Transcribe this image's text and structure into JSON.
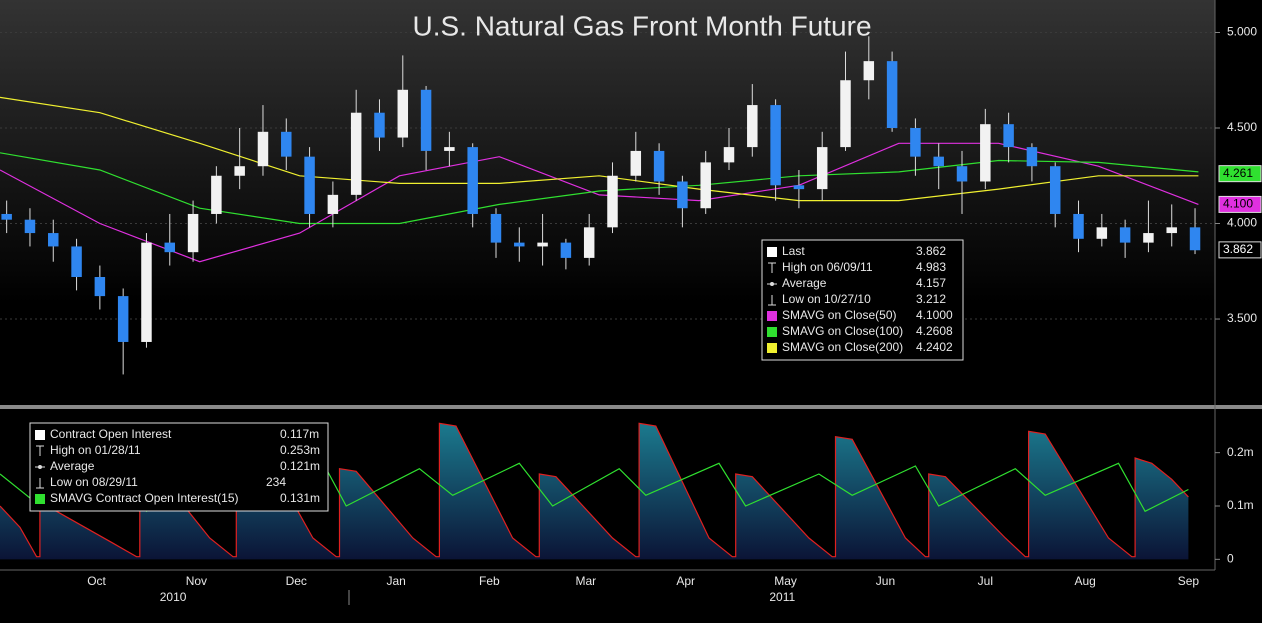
{
  "chart_data": [
    {
      "type": "candlestick",
      "title": "U.S. Natural Gas Front Month Future",
      "xlim": [
        0,
        365
      ],
      "ylim": [
        3.05,
        5.17
      ],
      "yticks": [
        {
          "value": 5,
          "label": "5.000"
        },
        {
          "value": 4.5,
          "label": "4.500"
        },
        {
          "value": 4,
          "label": "4.000"
        },
        {
          "value": 3.5,
          "label": "3.500"
        }
      ],
      "grid": true,
      "up_color": "#f2f2f2",
      "down_color": "#2f86f0",
      "x": [
        2,
        9,
        16,
        23,
        30,
        37,
        44,
        51,
        58,
        65,
        72,
        79,
        86,
        93,
        100,
        107,
        114,
        121,
        128,
        135,
        142,
        149,
        156,
        163,
        170,
        177,
        184,
        191,
        198,
        205,
        212,
        219,
        226,
        233,
        240,
        247,
        254,
        261,
        268,
        275,
        282,
        289,
        296,
        303,
        310,
        317,
        324,
        331,
        338,
        345,
        352,
        359
      ],
      "open": [
        4.05,
        4.02,
        3.95,
        3.88,
        3.72,
        3.62,
        3.38,
        3.9,
        3.85,
        4.05,
        4.25,
        4.3,
        4.48,
        4.35,
        4.05,
        4.15,
        4.58,
        4.45,
        4.7,
        4.38,
        4.4,
        4.05,
        3.9,
        3.88,
        3.9,
        3.82,
        3.98,
        4.25,
        4.38,
        4.22,
        4.08,
        4.32,
        4.4,
        4.62,
        4.2,
        4.18,
        4.4,
        4.75,
        4.85,
        4.5,
        4.35,
        4.3,
        4.22,
        4.52,
        4.4,
        4.3,
        4.05,
        3.92,
        3.98,
        3.9,
        3.95,
        3.98
      ],
      "high": [
        4.12,
        4.08,
        4.02,
        3.92,
        3.78,
        3.66,
        3.95,
        4.05,
        4.12,
        4.3,
        4.5,
        4.62,
        4.55,
        4.4,
        4.22,
        4.7,
        4.65,
        4.88,
        4.72,
        4.48,
        4.42,
        4.08,
        3.98,
        4.05,
        3.92,
        4.05,
        4.32,
        4.48,
        4.42,
        4.25,
        4.38,
        4.5,
        4.73,
        4.65,
        4.28,
        4.48,
        4.9,
        4.98,
        4.9,
        4.55,
        4.42,
        4.38,
        4.6,
        4.58,
        4.42,
        4.32,
        4.12,
        4.05,
        4.02,
        4.12,
        4.1,
        4.08
      ],
      "low": [
        3.95,
        3.88,
        3.8,
        3.65,
        3.55,
        3.21,
        3.35,
        3.78,
        3.8,
        4.0,
        4.18,
        4.25,
        4.28,
        3.98,
        3.98,
        4.12,
        4.38,
        4.4,
        4.28,
        4.3,
        3.98,
        3.82,
        3.8,
        3.78,
        3.76,
        3.78,
        3.95,
        4.22,
        4.15,
        3.98,
        4.05,
        4.28,
        4.35,
        4.12,
        4.08,
        4.12,
        4.38,
        4.65,
        4.48,
        4.25,
        4.18,
        4.05,
        4.18,
        4.32,
        4.22,
        3.98,
        3.85,
        3.88,
        3.82,
        3.85,
        3.88,
        3.84
      ],
      "close": [
        4.02,
        3.95,
        3.88,
        3.72,
        3.62,
        3.38,
        3.9,
        3.85,
        4.05,
        4.25,
        4.3,
        4.48,
        4.35,
        4.05,
        4.15,
        4.58,
        4.45,
        4.7,
        4.38,
        4.4,
        4.05,
        3.9,
        3.88,
        3.9,
        3.82,
        3.98,
        4.25,
        4.38,
        4.22,
        4.08,
        4.32,
        4.4,
        4.62,
        4.2,
        4.18,
        4.4,
        4.75,
        4.85,
        4.5,
        4.35,
        4.3,
        4.22,
        4.52,
        4.4,
        4.3,
        4.05,
        3.92,
        3.98,
        3.9,
        3.95,
        3.98,
        3.86
      ],
      "last_tag": 3.862,
      "legend": [
        {
          "label": "Last",
          "value": "3.862"
        },
        {
          "label": "High on 06/09/11",
          "value": "4.983"
        },
        {
          "label": "Average",
          "value": "4.157"
        },
        {
          "label": "Low on 10/27/10",
          "value": "3.212"
        }
      ],
      "series": [
        {
          "name": "SMAVG on Close(50)",
          "color": "#e030e0",
          "legend_value": "4.1000",
          "tag": {
            "value": 4.1,
            "label": "4.100"
          },
          "x": [
            0,
            30,
            60,
            90,
            120,
            150,
            180,
            210,
            240,
            270,
            300,
            330,
            360
          ],
          "values": [
            4.28,
            4.0,
            3.8,
            3.95,
            4.25,
            4.35,
            4.15,
            4.12,
            4.2,
            4.42,
            4.42,
            4.3,
            4.1
          ]
        },
        {
          "name": "SMAVG on Close(100)",
          "color": "#30e030",
          "legend_value": "4.2608",
          "tag": 4.261,
          "x": [
            0,
            30,
            60,
            90,
            120,
            150,
            180,
            210,
            240,
            270,
            300,
            330,
            360
          ],
          "values": [
            4.37,
            4.28,
            4.08,
            4.0,
            4.0,
            4.1,
            4.17,
            4.2,
            4.25,
            4.27,
            4.33,
            4.32,
            4.27
          ]
        },
        {
          "name": "SMAVG on Close(200)",
          "color": "#f0f030",
          "legend_value": "4.2402",
          "x": [
            0,
            30,
            60,
            90,
            120,
            150,
            180,
            210,
            240,
            270,
            300,
            330,
            360
          ],
          "values": [
            4.66,
            4.58,
            4.42,
            4.25,
            4.21,
            4.21,
            4.25,
            4.18,
            4.12,
            4.12,
            4.18,
            4.25,
            4.25
          ]
        }
      ]
    },
    {
      "type": "area",
      "xlim": [
        0,
        365
      ],
      "ylim": [
        -0.02,
        0.28
      ],
      "yticks": [
        {
          "value": 0.2,
          "label": "0.2m"
        },
        {
          "value": 0.1,
          "label": "0.1m"
        },
        0
      ],
      "xticks": [
        {
          "value": 29,
          "label": "Oct"
        },
        {
          "value": 59,
          "label": "Nov"
        },
        {
          "value": 89,
          "label": "Dec"
        },
        {
          "value": 119,
          "label": "Jan"
        },
        {
          "value": 147,
          "label": "Feb"
        },
        {
          "value": 176,
          "label": "Mar"
        },
        {
          "value": 206,
          "label": "Apr"
        },
        {
          "value": 236,
          "label": "May"
        },
        {
          "value": 266,
          "label": "Jun"
        },
        {
          "value": 296,
          "label": "Jul"
        },
        {
          "value": 326,
          "label": "Aug"
        },
        {
          "value": 357,
          "label": "Sep"
        }
      ],
      "year_labels": [
        {
          "value": 52,
          "label": "2010"
        },
        {
          "value": 235,
          "label": "2011"
        }
      ],
      "legend": [
        {
          "label": "High on 01/28/11",
          "value": "0.253m"
        },
        {
          "label": "Average",
          "value": "0.121m"
        },
        {
          "label": "Low on 08/29/11",
          "value": "234"
        }
      ],
      "series": [
        {
          "name": "Contract Open Interest",
          "color": "#e02020",
          "legend_value": "0.117m",
          "x": [
            0,
            6,
            11,
            12,
            12,
            17,
            34,
            41,
            42,
            42,
            47,
            63,
            70,
            71,
            71,
            77,
            94,
            101,
            102,
            102,
            107,
            124,
            131,
            132,
            132,
            137,
            154,
            161,
            162,
            162,
            167,
            184,
            191,
            192,
            192,
            197,
            213,
            220,
            221,
            221,
            226,
            243,
            250,
            251,
            251,
            256,
            272,
            278,
            279,
            279,
            284,
            302,
            308,
            309,
            309,
            314,
            333,
            340,
            341,
            341,
            346,
            352,
            357
          ],
          "values": [
            0.1,
            0.06,
            0.005,
            0.005,
            0.1,
            0.09,
            0.03,
            0.005,
            0.005,
            0.17,
            0.165,
            0.04,
            0.005,
            0.005,
            0.235,
            0.23,
            0.04,
            0.005,
            0.005,
            0.17,
            0.165,
            0.04,
            0.005,
            0.005,
            0.255,
            0.25,
            0.04,
            0.005,
            0.005,
            0.16,
            0.155,
            0.04,
            0.005,
            0.005,
            0.255,
            0.25,
            0.04,
            0.005,
            0.005,
            0.16,
            0.155,
            0.04,
            0.005,
            0.005,
            0.23,
            0.225,
            0.04,
            0.005,
            0.005,
            0.16,
            0.155,
            0.04,
            0.005,
            0.005,
            0.24,
            0.235,
            0.04,
            0.005,
            0.005,
            0.19,
            0.18,
            0.15,
            0.117
          ]
        },
        {
          "name": "SMAVG Contract Open Interest(15)",
          "color": "#30e030",
          "legend_value": "0.131m",
          "x": [
            0,
            12,
            36,
            44,
            66,
            76,
            98,
            104,
            126,
            136,
            156,
            166,
            186,
            194,
            216,
            224,
            246,
            256,
            275,
            282,
            305,
            314,
            336,
            344,
            357
          ],
          "values": [
            0.16,
            0.1,
            0.16,
            0.09,
            0.175,
            0.12,
            0.17,
            0.1,
            0.17,
            0.12,
            0.18,
            0.1,
            0.17,
            0.12,
            0.18,
            0.1,
            0.16,
            0.12,
            0.175,
            0.1,
            0.17,
            0.12,
            0.18,
            0.09,
            0.131
          ]
        }
      ]
    }
  ]
}
